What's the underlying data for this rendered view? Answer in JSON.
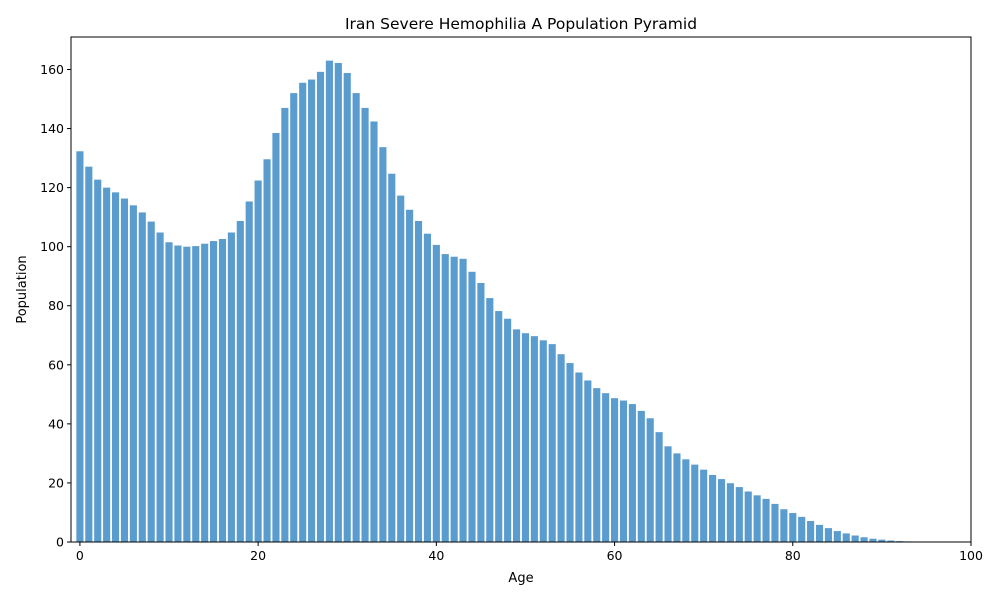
{
  "chart_data": {
    "type": "bar",
    "title": "Iran Severe Hemophilia A Population Pyramid",
    "xlabel": "Age",
    "ylabel": "Population",
    "xlim": [
      -1,
      100
    ],
    "ylim": [
      0,
      171
    ],
    "xticks": [
      0,
      20,
      40,
      60,
      80,
      100
    ],
    "yticks": [
      0,
      20,
      40,
      60,
      80,
      100,
      120,
      140,
      160
    ],
    "grid": false,
    "bar_color": "#5b9ccf",
    "x": [
      0,
      1,
      2,
      3,
      4,
      5,
      6,
      7,
      8,
      9,
      10,
      11,
      12,
      13,
      14,
      15,
      16,
      17,
      18,
      19,
      20,
      21,
      22,
      23,
      24,
      25,
      26,
      27,
      28,
      29,
      30,
      31,
      32,
      33,
      34,
      35,
      36,
      37,
      38,
      39,
      40,
      41,
      42,
      43,
      44,
      45,
      46,
      47,
      48,
      49,
      50,
      51,
      52,
      53,
      54,
      55,
      56,
      57,
      58,
      59,
      60,
      61,
      62,
      63,
      64,
      65,
      66,
      67,
      68,
      69,
      70,
      71,
      72,
      73,
      74,
      75,
      76,
      77,
      78,
      79,
      80,
      81,
      82,
      83,
      84,
      85,
      86,
      87,
      88,
      89,
      90,
      91,
      92,
      93,
      94,
      95
    ],
    "values": [
      132.3,
      127.1,
      122.7,
      120.0,
      118.4,
      116.3,
      114.0,
      111.6,
      108.5,
      104.8,
      101.5,
      100.4,
      100.0,
      100.2,
      101.0,
      101.9,
      102.6,
      104.8,
      108.7,
      115.3,
      122.4,
      129.6,
      138.5,
      147.0,
      152.0,
      155.5,
      156.6,
      159.2,
      163.0,
      162.2,
      158.8,
      152.0,
      147.0,
      142.4,
      133.7,
      124.7,
      117.3,
      112.5,
      108.7,
      104.4,
      100.6,
      97.5,
      96.6,
      95.9,
      91.5,
      87.7,
      82.6,
      78.2,
      75.6,
      72.0,
      70.7,
      69.7,
      68.3,
      67.0,
      63.6,
      60.6,
      57.4,
      54.7,
      52.1,
      50.4,
      48.7,
      47.9,
      46.7,
      44.4,
      41.9,
      37.2,
      32.4,
      30.0,
      28.0,
      26.2,
      24.5,
      22.7,
      21.3,
      19.9,
      18.6,
      17.1,
      15.8,
      14.6,
      12.9,
      11.1,
      9.8,
      8.5,
      7.1,
      5.8,
      4.7,
      3.7,
      2.9,
      2.2,
      1.6,
      1.1,
      0.8,
      0.5,
      0.3,
      0.2,
      0.1,
      0.1
    ]
  }
}
